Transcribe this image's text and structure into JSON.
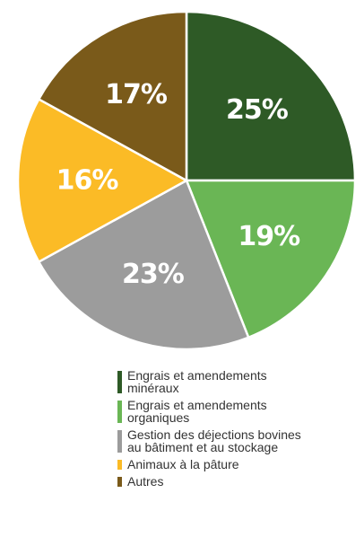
{
  "chart_data": {
    "type": "pie",
    "title": "",
    "start_angle_deg": 0,
    "direction": "clockwise",
    "slices": [
      {
        "label": "Engrais et amendements\nminéraux",
        "value": 25,
        "value_label": "25%",
        "color": "#2e5a26"
      },
      {
        "label": "Engrais et amendements\norganiques",
        "value": 19,
        "value_label": "19%",
        "color": "#6ab655"
      },
      {
        "label": "Gestion des déjections bovines\nau bâtiment et au stockage",
        "value": 23,
        "value_label": "23%",
        "color": "#9c9c9c"
      },
      {
        "label": "Animaux à la pâture",
        "value": 16,
        "value_label": "16%",
        "color": "#fbbb26"
      },
      {
        "label": "Autres",
        "value": 17,
        "value_label": "17%",
        "color": "#7a5a1a"
      }
    ],
    "legend_position": "bottom"
  }
}
